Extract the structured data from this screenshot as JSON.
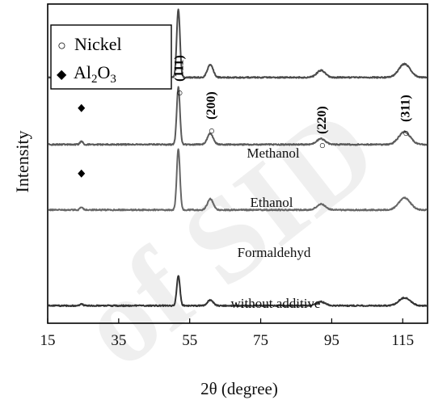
{
  "chart_data": {
    "type": "line",
    "xlabel": "2θ (degree)",
    "ylabel": "Intensity",
    "x_ticks": [
      15,
      35,
      55,
      75,
      95,
      115
    ],
    "x_range": [
      15,
      120
    ],
    "legend": {
      "position": "top-left",
      "entries": [
        {
          "symbol": "○",
          "label": "Nickel"
        },
        {
          "symbol": "◆",
          "label_main": "Al",
          "label_sub": "2",
          "label_mid": "O",
          "label_sub2": "3"
        }
      ]
    },
    "peak_labels": [
      {
        "hkl": "(111)",
        "marker": "○",
        "x": 51.8
      },
      {
        "hkl": "(200)",
        "marker": "○",
        "x": 60.8
      },
      {
        "hkl": "(220)",
        "marker": "○",
        "x": 92.0
      },
      {
        "hkl": "(311)",
        "marker": "○",
        "x": 115.5
      }
    ],
    "series": [
      {
        "name": "Methanol",
        "color": "#4a4a4a",
        "baseline": 0.77,
        "peaks": [
          [
            24.5,
            0.01,
            0.4
          ],
          [
            51.8,
            0.215,
            0.45
          ],
          [
            60.8,
            0.04,
            0.8
          ],
          [
            92.0,
            0.022,
            1.2
          ],
          [
            115.5,
            0.042,
            1.6
          ]
        ],
        "al2o3_marker_x": 24.5
      },
      {
        "name": "Ethanol",
        "color": "#5a5a5a",
        "baseline": 0.56,
        "peaks": [
          [
            24.5,
            0.01,
            0.4
          ],
          [
            51.8,
            0.18,
            0.45
          ],
          [
            60.8,
            0.035,
            0.8
          ],
          [
            92.0,
            0.018,
            1.2
          ],
          [
            115.5,
            0.04,
            1.6
          ]
        ],
        "al2o3_marker_x": 24.5
      },
      {
        "name": "Formaldehyd",
        "color": "#666666",
        "baseline": 0.355,
        "peaks": [
          [
            24.5,
            0.008,
            0.4
          ],
          [
            51.8,
            0.19,
            0.45
          ],
          [
            60.8,
            0.035,
            0.8
          ],
          [
            92.0,
            0.018,
            1.2
          ],
          [
            115.5,
            0.038,
            1.6
          ]
        ],
        "al2o3_marker_x": 24.5
      },
      {
        "name": "without additive",
        "color": "#333333",
        "baseline": 0.055,
        "peaks": [
          [
            24.5,
            0.006,
            0.4
          ],
          [
            51.8,
            0.095,
            0.45
          ],
          [
            60.8,
            0.018,
            0.8
          ],
          [
            92.0,
            0.012,
            1.2
          ],
          [
            115.5,
            0.025,
            1.6
          ]
        ],
        "al2o3_marker_x": null
      }
    ],
    "watermark": "Archive of SID"
  }
}
